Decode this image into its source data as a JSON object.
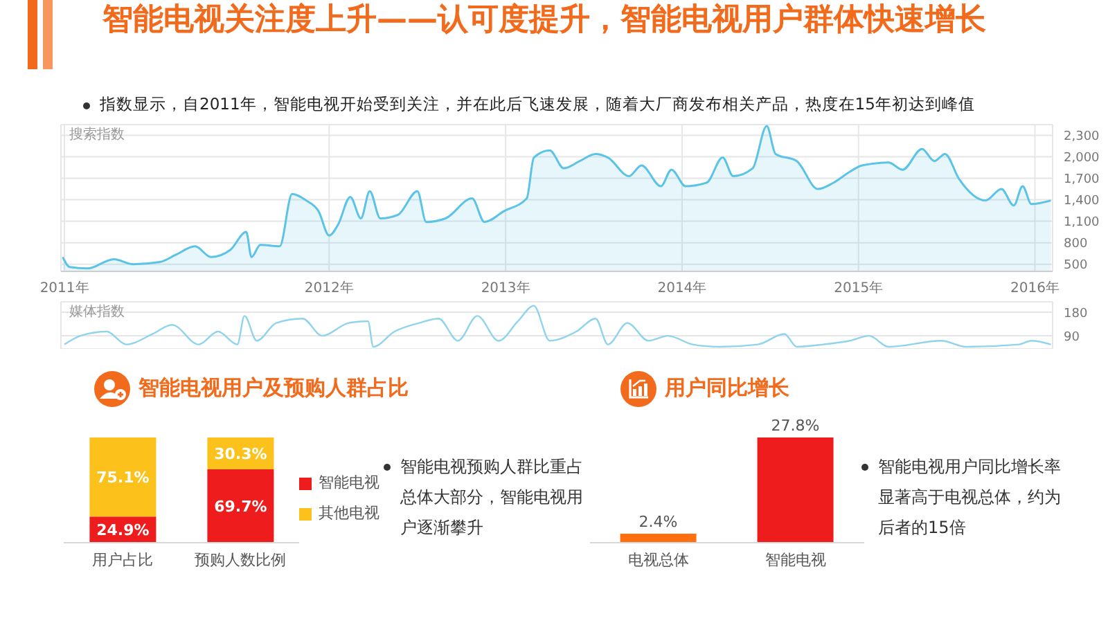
{
  "chart_data": [
    {
      "type": "area",
      "title": "智能电视关注度上升——认可度提升，智能电视用户群体快速增长",
      "subtitle": "指数显示，自2011年，智能电视开始受到关注，并在此后飞速发展，随着大厂商发布相关产品，热度在15年初达到峰值",
      "ylabel": "搜索指数",
      "color": "#5bc4e6",
      "grid": true,
      "xlim": [
        2010.48,
        2016.1
      ],
      "xticks": [
        {
          "value": 2010.5,
          "label": "2011年"
        },
        {
          "value": 2012,
          "label": "2012年"
        },
        {
          "value": 2013,
          "label": "2013年"
        },
        {
          "value": 2014,
          "label": "2014年"
        },
        {
          "value": 2015,
          "label": "2015年"
        },
        {
          "value": 2016,
          "label": "2016年"
        }
      ],
      "ylim": [
        400,
        2450
      ],
      "yticks": [
        {
          "value": 500,
          "label": "500"
        },
        {
          "value": 800,
          "label": "800"
        },
        {
          "value": 1100,
          "label": "1,100"
        },
        {
          "value": 1400,
          "label": "1,400"
        },
        {
          "value": 1700,
          "label": "1,700"
        },
        {
          "value": 2000,
          "label": "2,000"
        },
        {
          "value": 2300,
          "label": "2,300"
        }
      ],
      "x": [
        2010.49,
        2010.53,
        2010.63,
        2010.78,
        2010.89,
        2011.04,
        2011.13,
        2011.24,
        2011.33,
        2011.44,
        2011.53,
        2011.56,
        2011.61,
        2011.72,
        2011.79,
        2011.87,
        2011.94,
        2012.0,
        2012.05,
        2012.12,
        2012.18,
        2012.23,
        2012.29,
        2012.39,
        2012.5,
        2012.55,
        2012.66,
        2012.81,
        2012.88,
        2012.99,
        2013.12,
        2013.16,
        2013.25,
        2013.33,
        2013.42,
        2013.51,
        2013.58,
        2013.7,
        2013.77,
        2013.88,
        2013.94,
        2014.02,
        2014.14,
        2014.23,
        2014.29,
        2014.4,
        2014.48,
        2014.53,
        2014.65,
        2014.77,
        2014.86,
        2014.95,
        2015.02,
        2015.17,
        2015.25,
        2015.36,
        2015.43,
        2015.49,
        2015.57,
        2015.72,
        2015.81,
        2015.88,
        2015.93,
        2015.98,
        2016.09
      ],
      "values": [
        600,
        460,
        440,
        570,
        500,
        530,
        630,
        750,
        600,
        700,
        950,
        600,
        770,
        750,
        1480,
        1390,
        1240,
        900,
        1050,
        1440,
        1140,
        1520,
        1140,
        1190,
        1520,
        1090,
        1140,
        1420,
        1090,
        1240,
        1420,
        1990,
        2090,
        1840,
        1940,
        2040,
        1990,
        1730,
        1880,
        1590,
        1820,
        1590,
        1640,
        1990,
        1730,
        1840,
        2430,
        2040,
        1940,
        1550,
        1640,
        1790,
        1880,
        1920,
        1820,
        2110,
        1940,
        2040,
        1690,
        1390,
        1550,
        1320,
        1590,
        1340,
        1390
      ]
    },
    {
      "type": "line",
      "ylabel": "媒体指数",
      "color": "#8fd3ec",
      "grid": true,
      "tick_labels": "y",
      "xlim": [
        2010.48,
        2016.1
      ],
      "ylim": [
        40,
        220
      ],
      "yticks": [
        90,
        180
      ],
      "x": [
        2010.5,
        2010.59,
        2010.74,
        2010.85,
        2011.0,
        2011.11,
        2011.26,
        2011.37,
        2011.48,
        2011.52,
        2011.59,
        2011.7,
        2011.85,
        2011.96,
        2012.11,
        2012.22,
        2012.25,
        2012.37,
        2012.51,
        2012.62,
        2012.73,
        2012.84,
        2012.96,
        2013.07,
        2013.16,
        2013.25,
        2013.4,
        2013.51,
        2013.58,
        2013.69,
        2013.81,
        2013.92,
        2014.06,
        2014.21,
        2014.43,
        2014.58,
        2014.65,
        2014.8,
        2014.95,
        2015.06,
        2015.17,
        2015.47,
        2015.61,
        2015.91,
        2015.98,
        2016.09
      ],
      "values": [
        57,
        90,
        106,
        57,
        97,
        132,
        57,
        106,
        57,
        166,
        71,
        139,
        156,
        90,
        139,
        146,
        48,
        106,
        139,
        156,
        71,
        166,
        71,
        146,
        205,
        71,
        106,
        156,
        57,
        139,
        71,
        90,
        57,
        48,
        57,
        97,
        48,
        57,
        71,
        90,
        48,
        71,
        48,
        57,
        71,
        57
      ]
    },
    {
      "type": "bar",
      "title": "智能电视用户及预购人群占比",
      "stacked": true,
      "legend": "right",
      "tick_labels": "x",
      "categories": [
        "用户占比",
        "预购人数比例"
      ],
      "annotations": [
        "智能电视预购人群比重占总体大部分，智能电视用户逐渐攀升"
      ],
      "series": [
        {
          "name": "智能电视",
          "color": "#ee1c1c",
          "values": [
            24.9,
            69.7
          ],
          "value_labels": [
            "24.9%",
            "69.7%"
          ]
        },
        {
          "name": "其他电视",
          "color": "#fcc21b",
          "values": [
            75.1,
            30.3
          ],
          "value_labels": [
            "75.1%",
            "30.3%"
          ]
        }
      ]
    },
    {
      "type": "bar",
      "title": "用户同比增长",
      "tick_labels": "x",
      "categories": [
        "电视总体",
        "智能电视"
      ],
      "values": [
        2.4,
        27.8
      ],
      "colors": [
        "#ff6f0f",
        "#ee1c1c"
      ],
      "value_labels": [
        "2.4%",
        "27.8%"
      ],
      "annotations": [
        "智能电视用户同比增长率显著高于电视总体，约为后者的15倍"
      ]
    }
  ]
}
